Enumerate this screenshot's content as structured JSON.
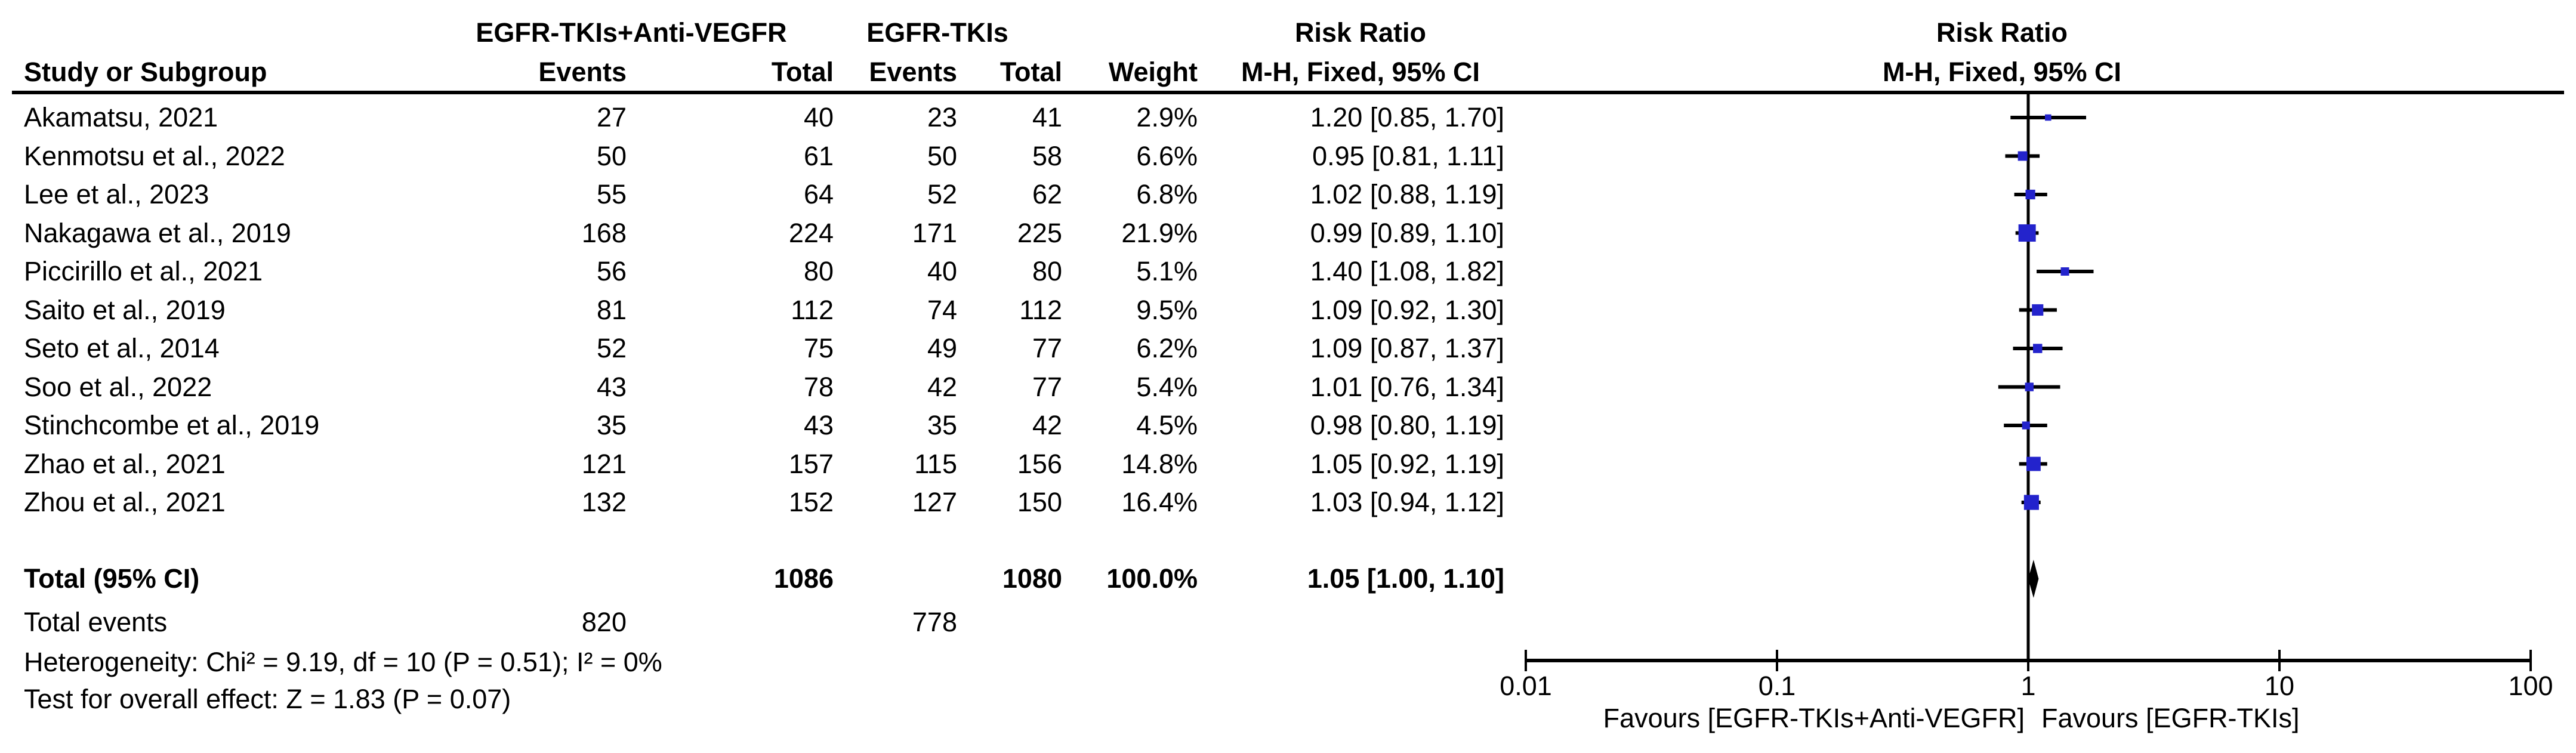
{
  "table": {
    "group1_header": "EGFR-TKIs+Anti-VEGFR",
    "group2_header": "EGFR-TKIs",
    "risk_ratio_header": "Risk Ratio",
    "method_header": "M-H, Fixed, 95% CI",
    "plot_risk_ratio_header": "Risk Ratio",
    "plot_method_header": "M-H, Fixed, 95% CI",
    "col_study": "Study or Subgroup",
    "col_events_1": "Events",
    "col_total_1": "Total",
    "col_events_2": "Events",
    "col_total_2": "Total",
    "col_weight": "Weight",
    "total_label": "Total (95% CI)",
    "total_total1": "1086",
    "total_total2": "1080",
    "total_weight": "100.0%",
    "total_ci_text": "1.05 [1.00, 1.10]",
    "total_events_label": "Total events",
    "total_events1": "820",
    "total_events2": "778",
    "heterogeneity_text": "Heterogeneity: Chi² = 9.19, df = 10 (P = 0.51); I² = 0%",
    "overall_effect_text": "Test for overall effect: Z = 1.83 (P = 0.07)"
  },
  "chart_data": {
    "type": "forest",
    "scale": "log10",
    "xlim": [
      0.01,
      100
    ],
    "axis_ticks": [
      "0.01",
      "0.1",
      "1",
      "10",
      "100"
    ],
    "no_effect_value": 1,
    "favours_left": "Favours [EGFR-TKIs+Anti-VEGFR]",
    "favours_right": "Favours [EGFR-TKIs]",
    "marker_color": "#2323CC",
    "line_color": "#000000",
    "studies": [
      {
        "study": "Akamatsu, 2021",
        "events1": "27",
        "total1": "40",
        "events2": "23",
        "total2": "41",
        "weight": "2.9%",
        "weight_pct": 2.9,
        "rr": 1.2,
        "ci_low": 0.85,
        "ci_high": 1.7,
        "ci_text": "1.20 [0.85, 1.70]"
      },
      {
        "study": "Kenmotsu et al., 2022",
        "events1": "50",
        "total1": "61",
        "events2": "50",
        "total2": "58",
        "weight": "6.6%",
        "weight_pct": 6.6,
        "rr": 0.95,
        "ci_low": 0.81,
        "ci_high": 1.11,
        "ci_text": "0.95 [0.81, 1.11]"
      },
      {
        "study": "Lee et al., 2023",
        "events1": "55",
        "total1": "64",
        "events2": "52",
        "total2": "62",
        "weight": "6.8%",
        "weight_pct": 6.8,
        "rr": 1.02,
        "ci_low": 0.88,
        "ci_high": 1.19,
        "ci_text": "1.02 [0.88, 1.19]"
      },
      {
        "study": "Nakagawa et al., 2019",
        "events1": "168",
        "total1": "224",
        "events2": "171",
        "total2": "225",
        "weight": "21.9%",
        "weight_pct": 21.9,
        "rr": 0.99,
        "ci_low": 0.89,
        "ci_high": 1.1,
        "ci_text": "0.99 [0.89, 1.10]"
      },
      {
        "study": "Piccirillo et al., 2021",
        "events1": "56",
        "total1": "80",
        "events2": "40",
        "total2": "80",
        "weight": "5.1%",
        "weight_pct": 5.1,
        "rr": 1.4,
        "ci_low": 1.08,
        "ci_high": 1.82,
        "ci_text": "1.40 [1.08, 1.82]"
      },
      {
        "study": "Saito et al., 2019",
        "events1": "81",
        "total1": "112",
        "events2": "74",
        "total2": "112",
        "weight": "9.5%",
        "weight_pct": 9.5,
        "rr": 1.09,
        "ci_low": 0.92,
        "ci_high": 1.3,
        "ci_text": "1.09 [0.92, 1.30]"
      },
      {
        "study": "Seto et al., 2014",
        "events1": "52",
        "total1": "75",
        "events2": "49",
        "total2": "77",
        "weight": "6.2%",
        "weight_pct": 6.2,
        "rr": 1.09,
        "ci_low": 0.87,
        "ci_high": 1.37,
        "ci_text": "1.09 [0.87, 1.37]"
      },
      {
        "study": "Soo et al., 2022",
        "events1": "43",
        "total1": "78",
        "events2": "42",
        "total2": "77",
        "weight": "5.4%",
        "weight_pct": 5.4,
        "rr": 1.01,
        "ci_low": 0.76,
        "ci_high": 1.34,
        "ci_text": "1.01 [0.76, 1.34]"
      },
      {
        "study": "Stinchcombe et al., 2019",
        "events1": "35",
        "total1": "43",
        "events2": "35",
        "total2": "42",
        "weight": "4.5%",
        "weight_pct": 4.5,
        "rr": 0.98,
        "ci_low": 0.8,
        "ci_high": 1.19,
        "ci_text": "0.98 [0.80, 1.19]"
      },
      {
        "study": "Zhao et al., 2021",
        "events1": "121",
        "total1": "157",
        "events2": "115",
        "total2": "156",
        "weight": "14.8%",
        "weight_pct": 14.8,
        "rr": 1.05,
        "ci_low": 0.92,
        "ci_high": 1.19,
        "ci_text": "1.05 [0.92, 1.19]"
      },
      {
        "study": "Zhou et al., 2021",
        "events1": "132",
        "total1": "152",
        "events2": "127",
        "total2": "150",
        "weight": "16.4%",
        "weight_pct": 16.4,
        "rr": 1.03,
        "ci_low": 0.94,
        "ci_high": 1.12,
        "ci_text": "1.03 [0.94, 1.12]"
      }
    ],
    "total": {
      "rr": 1.05,
      "ci_low": 1.0,
      "ci_high": 1.1
    }
  }
}
